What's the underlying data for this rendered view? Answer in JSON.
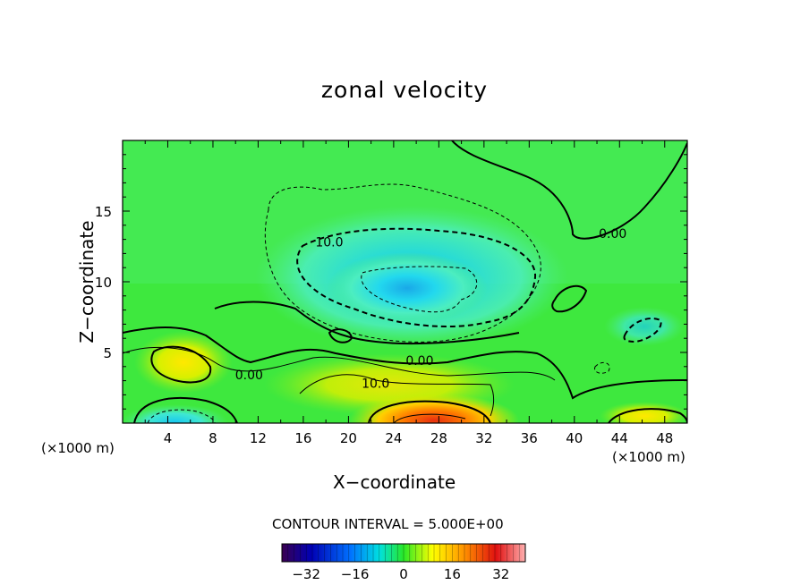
{
  "chart_data": {
    "type": "heatmap",
    "title": "zonal velocity",
    "xlabel": "X−coordinate",
    "ylabel": "Z−coordinate",
    "x_unit_note": "(×1000 m)",
    "xlim": [
      0,
      50
    ],
    "ylim": [
      0,
      20
    ],
    "x_ticks": [
      4,
      8,
      12,
      16,
      20,
      24,
      28,
      32,
      36,
      40,
      44,
      48
    ],
    "y_ticks": [
      5,
      10,
      15
    ],
    "contour_interval_text": "CONTOUR INTERVAL = 5.000E+00",
    "contour_labels": [
      {
        "text": "0.00",
        "x": 43.4,
        "z": 13.1
      },
      {
        "text": "10.0",
        "x": 18.3,
        "z": 12.5
      },
      {
        "text": "0.00",
        "x": 11.2,
        "z": 3.1
      },
      {
        "text": "0.00",
        "x": 26.3,
        "z": 4.1
      },
      {
        "text": "10.0",
        "x": 22.4,
        "z": 2.5
      }
    ],
    "field_extrema": [
      {
        "x": 25,
        "z": 8.8,
        "value": -15
      },
      {
        "x": 5,
        "z": 4.2,
        "value": 15
      },
      {
        "x": 4.5,
        "z": 0.2,
        "value": -14
      },
      {
        "x": 28,
        "z": 0.5,
        "value": 30
      },
      {
        "x": 46,
        "z": 0.6,
        "value": 14
      }
    ],
    "colorbar": {
      "ticks": [
        -32,
        -16,
        0,
        16,
        32
      ],
      "range": [
        -40,
        40
      ]
    }
  }
}
